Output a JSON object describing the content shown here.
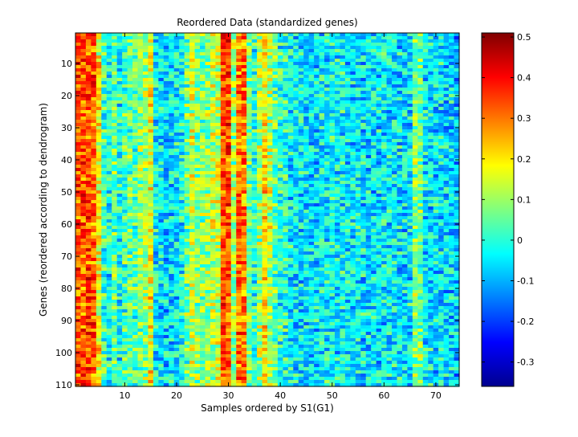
{
  "chart_data": {
    "type": "heatmap",
    "title": "Reordered Data (standardized genes)",
    "xlabel": "Samples ordered by S1(G1)",
    "ylabel": "Genes (reordered according to dendrogram)",
    "x_range": [
      1,
      74
    ],
    "y_range": [
      1,
      110
    ],
    "x_ticks": [
      10,
      20,
      30,
      40,
      50,
      60,
      70
    ],
    "y_ticks": [
      10,
      20,
      30,
      40,
      50,
      60,
      70,
      80,
      90,
      100,
      110
    ],
    "colormap": "jet",
    "clim": [
      -0.36,
      0.51
    ],
    "colorbar_ticks": [
      0.5,
      0.4,
      0.3,
      0.2,
      0.1,
      0,
      -0.1,
      -0.2,
      -0.3
    ],
    "colorbar_tick_labels": [
      "0.5",
      "0.4",
      "0.3",
      "0.2",
      "0.1",
      "0",
      "-0.1",
      "-0.2",
      "-0.3"
    ],
    "n_columns": 74,
    "n_rows": 110,
    "column_means": [
      0.33,
      0.33,
      0.33,
      0.33,
      0.18,
      0.02,
      -0.02,
      0.05,
      -0.02,
      0.03,
      0.05,
      0.02,
      0.08,
      0.1,
      0.18,
      -0.04,
      -0.05,
      -0.06,
      -0.05,
      -0.04,
      -0.02,
      0.06,
      0.14,
      0.08,
      0.08,
      0.1,
      0.12,
      0.14,
      0.34,
      0.34,
      0.1,
      0.3,
      0.3,
      0.05,
      0.0,
      0.1,
      0.2,
      0.12,
      0.05,
      0.0,
      0.0,
      -0.03,
      -0.05,
      -0.05,
      -0.06,
      -0.05,
      -0.05,
      -0.04,
      -0.03,
      -0.02,
      -0.04,
      -0.02,
      -0.04,
      -0.05,
      -0.04,
      -0.05,
      -0.06,
      -0.05,
      -0.05,
      -0.04,
      -0.04,
      -0.04,
      -0.05,
      -0.06,
      -0.04,
      0.08,
      0.06,
      -0.04,
      -0.05,
      -0.05,
      -0.06,
      -0.06,
      -0.06,
      -0.08
    ],
    "row_variation": "cell values fluctuate around each column mean by roughly ±0.1"
  }
}
